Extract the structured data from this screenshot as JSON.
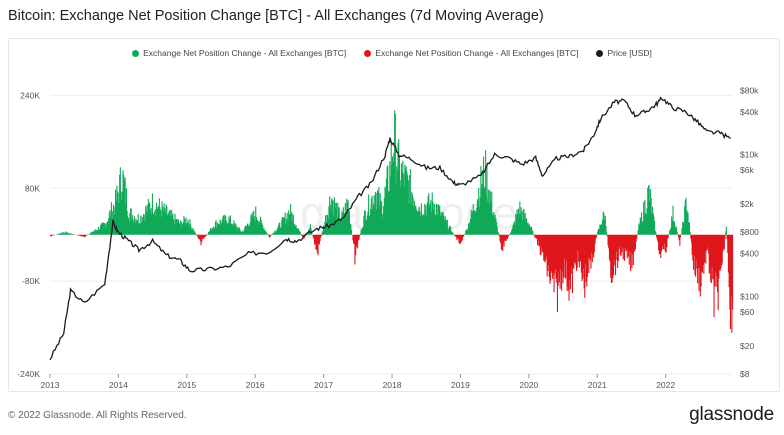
{
  "title": "Bitcoin: Exchange Net Position Change [BTC] - All Exchanges (7d Moving Average)",
  "footer": "© 2022 Glassnode. All Rights Reserved.",
  "brand": "glassnode",
  "watermark": "glassnode",
  "colors": {
    "positive": "#0fa958",
    "negative": "#e0161d",
    "price": "#1c1c1c",
    "grid": "#eeeeee"
  },
  "chart_data": {
    "type": "area",
    "title": "Bitcoin: Exchange Net Position Change [BTC] - All Exchanges (7d Moving Average)",
    "x_ticks": [
      "2013",
      "2014",
      "2015",
      "2016",
      "2017",
      "2018",
      "2019",
      "2020",
      "2021",
      "2022"
    ],
    "y_left_ticks": [
      "240K",
      "80K",
      "-80K",
      "-240K"
    ],
    "y_left_range": [
      -240000,
      270000
    ],
    "y_right_ticks": [
      "$80k",
      "$40k",
      "$10k",
      "$6k",
      "$2k",
      "$800",
      "$400",
      "$100",
      "$60",
      "$20",
      "$8"
    ],
    "y_right_scale": "log",
    "y_right_range": [
      8,
      120000
    ],
    "legend_position": "top",
    "series": [
      {
        "name": "Exchange Net Position Change - All Exchanges [BTC]",
        "color": "#0fa958",
        "note": "positive values"
      },
      {
        "name": "Exchange Net Position Change - All Exchanges [BTC]",
        "color": "#e0161d",
        "note": "negative values"
      },
      {
        "name": "Price [USD]",
        "color": "#1c1c1c",
        "axis": "right",
        "x": [
          2013.0,
          2013.2,
          2013.3,
          2013.5,
          2013.8,
          2013.92,
          2014.0,
          2014.15,
          2014.3,
          2014.5,
          2014.7,
          2014.9,
          2015.05,
          2015.3,
          2015.6,
          2015.9,
          2016.2,
          2016.45,
          2016.6,
          2016.9,
          2017.1,
          2017.3,
          2017.5,
          2017.7,
          2017.9,
          2017.97,
          2018.1,
          2018.3,
          2018.5,
          2018.7,
          2018.9,
          2019.0,
          2019.3,
          2019.5,
          2019.7,
          2019.9,
          2020.1,
          2020.2,
          2020.4,
          2020.6,
          2020.8,
          2020.95,
          2021.05,
          2021.25,
          2021.4,
          2021.55,
          2021.7,
          2021.85,
          2021.95,
          2022.1,
          2022.3,
          2022.45,
          2022.6,
          2022.8,
          2022.95
        ],
        "y": [
          13,
          30,
          120,
          80,
          150,
          1100,
          800,
          600,
          450,
          600,
          380,
          320,
          230,
          240,
          260,
          400,
          420,
          650,
          600,
          900,
          1000,
          1300,
          2500,
          4000,
          10000,
          17000,
          10000,
          8500,
          6500,
          6500,
          4000,
          3700,
          5000,
          10000,
          9000,
          7300,
          9000,
          5000,
          8800,
          9500,
          11500,
          19000,
          32000,
          55000,
          57000,
          36000,
          40000,
          50000,
          63000,
          46000,
          40000,
          30000,
          21000,
          20000,
          16800
        ]
      }
    ],
    "net_position": {
      "x": [
        2013.0,
        2013.2,
        2013.5,
        2013.8,
        2013.95,
        2014.05,
        2014.15,
        2014.3,
        2014.5,
        2014.7,
        2014.9,
        2015.0,
        2015.2,
        2015.4,
        2015.6,
        2015.8,
        2016.0,
        2016.2,
        2016.4,
        2016.5,
        2016.7,
        2016.8,
        2016.9,
        2017.0,
        2017.1,
        2017.25,
        2017.35,
        2017.45,
        2017.6,
        2017.75,
        2017.85,
        2017.95,
        2018.02,
        2018.1,
        2018.25,
        2018.4,
        2018.6,
        2018.8,
        2018.95,
        2019.0,
        2019.1,
        2019.2,
        2019.35,
        2019.5,
        2019.6,
        2019.75,
        2019.85,
        2020.0,
        2020.2,
        2020.3,
        2020.4,
        2020.5,
        2020.6,
        2020.7,
        2020.8,
        2020.9,
        2021.0,
        2021.1,
        2021.2,
        2021.35,
        2021.5,
        2021.6,
        2021.75,
        2021.9,
        2022.0,
        2022.1,
        2022.2,
        2022.3,
        2022.4,
        2022.5,
        2022.6,
        2022.7,
        2022.8,
        2022.88,
        2022.93,
        2022.97
      ],
      "y": [
        -3000,
        5000,
        -4000,
        20000,
        60000,
        110000,
        40000,
        30000,
        60000,
        40000,
        20000,
        30000,
        -15000,
        20000,
        30000,
        5000,
        40000,
        -5000,
        25000,
        45000,
        -10000,
        15000,
        -35000,
        20000,
        70000,
        30000,
        60000,
        -40000,
        40000,
        80000,
        50000,
        110000,
        180000,
        120000,
        90000,
        50000,
        60000,
        20000,
        -10000,
        -15000,
        15000,
        55000,
        120000,
        30000,
        -25000,
        10000,
        50000,
        20000,
        -40000,
        -80000,
        -110000,
        -60000,
        -100000,
        -45000,
        -90000,
        -55000,
        5000,
        40000,
        -70000,
        -30000,
        -55000,
        15000,
        80000,
        -35000,
        -25000,
        40000,
        -15000,
        65000,
        -55000,
        -85000,
        -30000,
        -120000,
        -90000,
        20000,
        -110000,
        -180000
      ]
    }
  }
}
